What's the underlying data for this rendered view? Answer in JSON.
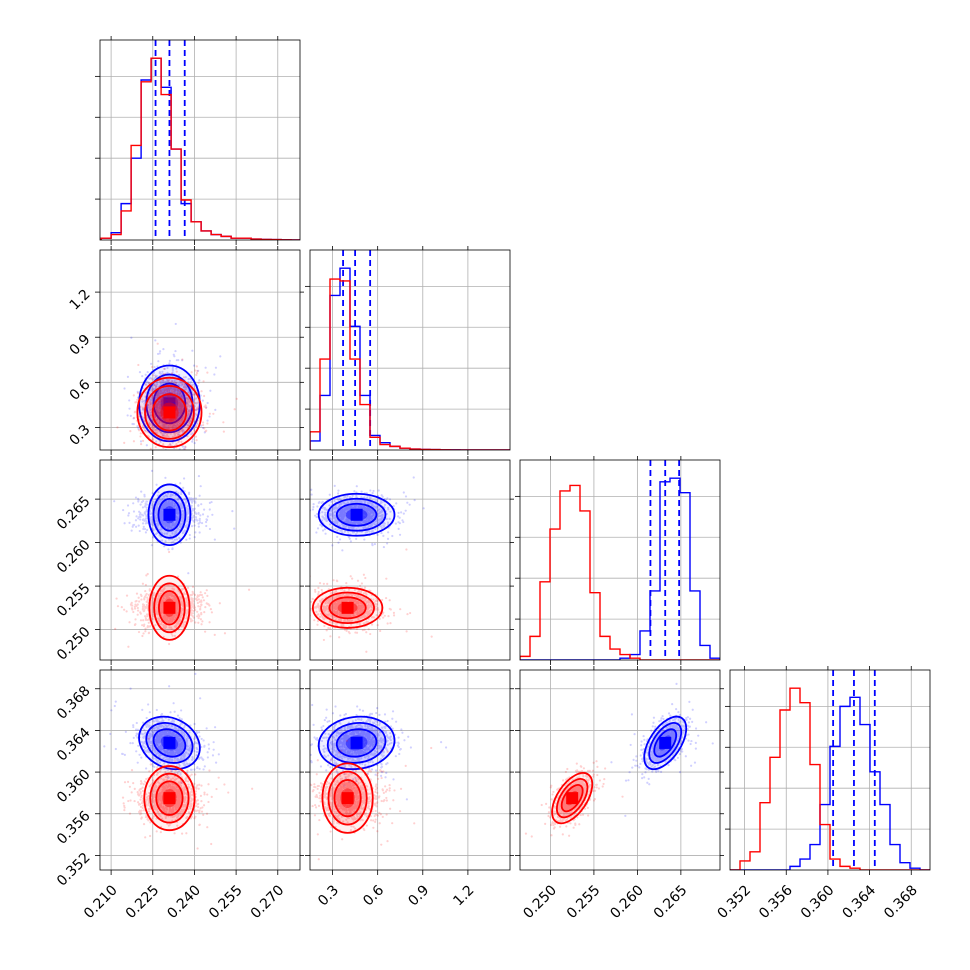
{
  "colors": {
    "sample_a": "#0000ff",
    "sample_b": "#ff0000",
    "grid": "#b0b0b0"
  },
  "chart_data": {
    "type": "corner",
    "grid": true,
    "dashed_quantile_lines": "sample_a",
    "parameters": [
      {
        "range": [
          0.206,
          0.278
        ],
        "ticks": [
          "0.210",
          "0.225",
          "0.240",
          "0.255",
          "0.270"
        ]
      },
      {
        "range": [
          0.15,
          1.48
        ],
        "ticks": [
          "0.3",
          "0.6",
          "0.9",
          "1.2"
        ]
      },
      {
        "range": [
          0.2465,
          0.2695
        ],
        "ticks": [
          "0.250",
          "0.255",
          "0.260",
          "0.265"
        ]
      },
      {
        "range": [
          0.3506,
          0.3698
        ],
        "ticks": [
          "0.352",
          "0.356",
          "0.360",
          "0.364",
          "0.368"
        ]
      }
    ],
    "series": [
      {
        "color": "#0000ff",
        "histograms": [
          {
            "edges_start": 0.2064,
            "bin_width": 0.0036,
            "counts": [
              0.01,
              0.04,
              0.2,
              0.45,
              0.88,
              1.0,
              0.84,
              0.5,
              0.2,
              0.1,
              0.05,
              0.03,
              0.02,
              0.01,
              0.01,
              0.005,
              0.003,
              0.002,
              0.001,
              0.0
            ]
          },
          {
            "edges_start": 0.15,
            "bin_width": 0.0665,
            "counts": [
              0.05,
              0.3,
              0.85,
              1.0,
              0.68,
              0.3,
              0.08,
              0.04,
              0.02,
              0.01,
              0.005,
              0.003,
              0.002,
              0.001,
              0.001,
              0.0,
              0.0,
              0.0,
              0.0,
              0.0
            ]
          },
          {
            "edges_start": 0.2465,
            "bin_width": 0.00115,
            "counts": [
              0,
              0,
              0,
              0,
              0,
              0,
              0,
              0,
              0,
              0,
              0.01,
              0.03,
              0.16,
              0.38,
              0.98,
              1.0,
              0.92,
              0.38,
              0.08,
              0.01
            ]
          },
          {
            "edges_start": 0.3506,
            "bin_width": 0.00096,
            "counts": [
              0,
              0,
              0,
              0,
              0,
              0,
              0.02,
              0.06,
              0.14,
              0.36,
              0.68,
              0.9,
              0.95,
              0.8,
              0.54,
              0.36,
              0.14,
              0.04,
              0.01,
              0.0
            ]
          }
        ],
        "quantiles": [
          [
            0.226,
            0.231,
            0.2365
          ],
          [
            0.37,
            0.45,
            0.55
          ],
          [
            0.2615,
            0.2632,
            0.2648
          ],
          [
            0.3605,
            0.3625,
            0.3645
          ]
        ],
        "means": [
          0.231,
          0.46,
          0.2632,
          0.3628
        ],
        "sds": [
          0.0052,
          0.12,
          0.00115,
          0.0012
        ],
        "correlation": [
          [
            1,
            0.0,
            0.0,
            -0.2
          ],
          [
            0.0,
            1,
            0.0,
            0.1
          ],
          [
            0.0,
            0.0,
            1,
            0.55
          ],
          [
            -0.2,
            0.1,
            0.55,
            1
          ]
        ]
      },
      {
        "color": "#ff0000",
        "histograms": [
          {
            "edges_start": 0.2064,
            "bin_width": 0.0036,
            "counts": [
              0.01,
              0.03,
              0.16,
              0.52,
              0.87,
              1.0,
              0.8,
              0.5,
              0.22,
              0.1,
              0.05,
              0.03,
              0.02,
              0.01,
              0.01,
              0.005,
              0.003,
              0.002,
              0.001,
              0.0
            ]
          },
          {
            "edges_start": 0.15,
            "bin_width": 0.0665,
            "counts": [
              0.1,
              0.5,
              0.94,
              0.93,
              0.5,
              0.25,
              0.07,
              0.03,
              0.02,
              0.01,
              0.005,
              0.003,
              0.002,
              0.001,
              0.0,
              0.0,
              0.0,
              0.0,
              0.0,
              0.0
            ]
          },
          {
            "edges_start": 0.2465,
            "bin_width": 0.00115,
            "counts": [
              0.02,
              0.13,
              0.43,
              0.72,
              0.93,
              0.96,
              0.82,
              0.37,
              0.13,
              0.06,
              0.03,
              0.01,
              0.0,
              0,
              0,
              0,
              0,
              0,
              0,
              0
            ]
          },
          {
            "edges_start": 0.3506,
            "bin_width": 0.00096,
            "counts": [
              0.0,
              0.05,
              0.1,
              0.37,
              0.62,
              0.88,
              1.0,
              0.92,
              0.58,
              0.25,
              0.06,
              0.02,
              0.01,
              0.0,
              0,
              0,
              0,
              0,
              0,
              0
            ]
          }
        ],
        "means": [
          0.231,
          0.4,
          0.2525,
          0.3575
        ],
        "sds": [
          0.0055,
          0.11,
          0.0011,
          0.00115
        ],
        "correlation": [
          [
            1,
            0.0,
            0.0,
            0.0
          ],
          [
            0.0,
            1,
            0.0,
            0.0
          ],
          [
            0.0,
            0.0,
            1,
            0.55
          ],
          [
            0.0,
            0.0,
            0.55,
            1
          ]
        ]
      }
    ]
  }
}
